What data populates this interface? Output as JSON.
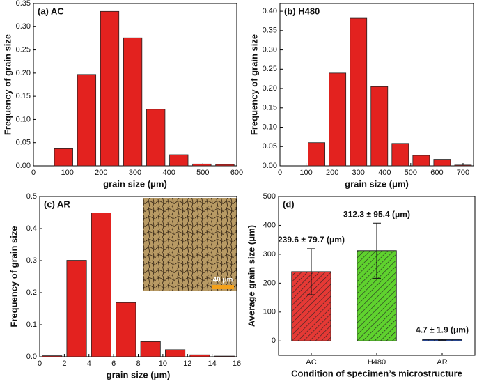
{
  "chart_data": [
    {
      "type": "histogram",
      "title": "(a) AC",
      "xlabel": "grain size (μm)",
      "ylabel": "Frequency of grain size",
      "bins": [
        55,
        123,
        191,
        259,
        327,
        395,
        463,
        531,
        599
      ],
      "values": [
        0.037,
        0.197,
        0.333,
        0.276,
        0.122,
        0.024,
        0.004,
        0.003
      ],
      "color": "#e3221f",
      "xlim": [
        0,
        600
      ],
      "xticks": [
        0,
        100,
        200,
        300,
        400,
        500,
        600
      ],
      "ylim": [
        0,
        0.35
      ],
      "yticks": [
        {
          "value": 0,
          "label": "0.00"
        },
        0.05,
        {
          "value": 0.1,
          "label": "0.10"
        },
        0.15,
        {
          "value": 0.2,
          "label": "0.20"
        },
        0.25,
        {
          "value": 0.3,
          "label": "0.30"
        },
        0.35
      ]
    },
    {
      "type": "histogram",
      "title": "(b) H480",
      "xlabel": "grain size (μm)",
      "ylabel": "Frequency of grain size",
      "bins": [
        100,
        180,
        260,
        340,
        420,
        500,
        580,
        660,
        740
      ],
      "values": [
        0.06,
        0.24,
        0.382,
        0.205,
        0.058,
        0.027,
        0.017,
        0.002
      ],
      "color": "#e3221f",
      "xlim": [
        0,
        740
      ],
      "xticks": [
        0,
        100,
        200,
        300,
        400,
        500,
        600,
        700
      ],
      "ylim": [
        0,
        0.42
      ],
      "yticks": [
        {
          "value": 0,
          "label": "0.00"
        },
        0.05,
        {
          "value": 0.1,
          "label": "0.10"
        },
        0.15,
        {
          "value": 0.2,
          "label": "0.20"
        },
        0.25,
        {
          "value": 0.3,
          "label": "0.30"
        },
        0.35,
        {
          "value": 0.4,
          "label": "0.40"
        }
      ]
    },
    {
      "type": "histogram",
      "title": "(c) AR",
      "xlabel": "grain size (μm)",
      "ylabel": "Frequency of grain size",
      "inset_label": "40 μm",
      "bins": [
        0,
        2,
        4,
        6,
        8,
        10,
        12,
        14,
        16
      ],
      "values": [
        0.003,
        0.301,
        0.449,
        0.169,
        0.047,
        0.022,
        0.006,
        0.002
      ],
      "color": "#e3221f",
      "xlim": [
        0,
        16
      ],
      "xticks": [
        0,
        2,
        4,
        6,
        8,
        10,
        12,
        14,
        16
      ],
      "ylim": [
        0,
        0.5
      ],
      "yticks": [
        {
          "value": 0,
          "label": "0.0"
        },
        0.1,
        0.2,
        0.3,
        0.4,
        0.5
      ]
    },
    {
      "type": "bar",
      "title": "(d)",
      "xlabel": "Condition of specimen’s microstructure",
      "ylabel": "Average grain size (μm)",
      "categories": [
        "AC",
        "H480",
        "AR"
      ],
      "values": [
        239.6,
        312.3,
        4.7
      ],
      "errors": [
        79.7,
        95.4,
        1.9
      ],
      "value_labels": [
        "239.6 ± 79.7 (μm)",
        "312.3 ± 95.4 (μm)",
        "4.7 ± 1.9 (μm)"
      ],
      "colors": [
        "#e53935",
        "#5fd22e",
        "#2a52b0"
      ],
      "ylim": [
        -50,
        500
      ],
      "yticks": [
        0,
        100,
        200,
        300,
        400,
        500
      ]
    }
  ]
}
